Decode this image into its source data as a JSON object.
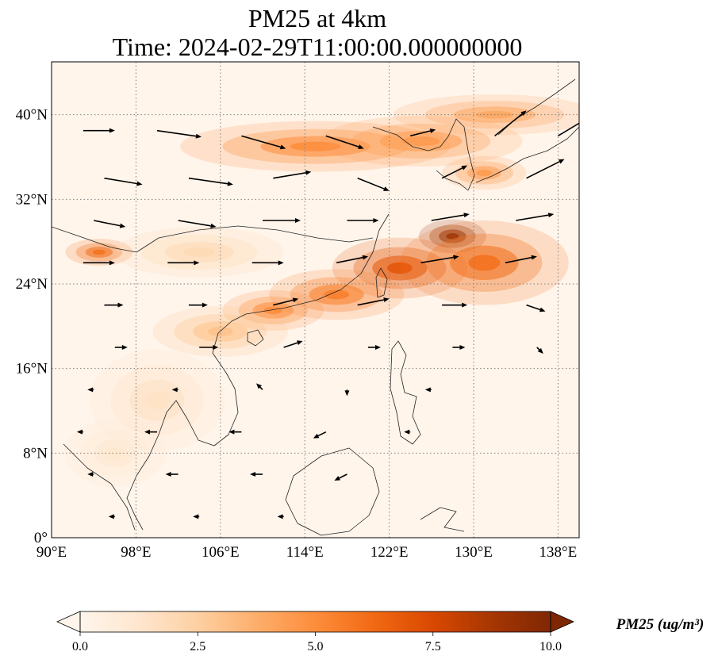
{
  "title": {
    "line1": "PM25 at 4km",
    "line2": "Time: 2024-02-29T11:00:00.000000000"
  },
  "map": {
    "extent": {
      "lon_min": 90,
      "lon_max": 140,
      "lat_min": 0,
      "lat_max": 45
    },
    "gridlines": {
      "visible": true,
      "style": "dotted",
      "color": "#808080"
    },
    "lon_ticks": [
      {
        "value": 90,
        "label": "90°E"
      },
      {
        "value": 98,
        "label": "98°E"
      },
      {
        "value": 106,
        "label": "106°E"
      },
      {
        "value": 114,
        "label": "114°E"
      },
      {
        "value": 122,
        "label": "122°E"
      },
      {
        "value": 130,
        "label": "130°E"
      },
      {
        "value": 138,
        "label": "138°E"
      }
    ],
    "lat_ticks": [
      {
        "value": 0,
        "label": "0°"
      },
      {
        "value": 8,
        "label": "8°N"
      },
      {
        "value": 16,
        "label": "16°N"
      },
      {
        "value": 24,
        "label": "24°N"
      },
      {
        "value": 32,
        "label": "32°N"
      },
      {
        "value": 40,
        "label": "40°N"
      }
    ],
    "plumes": [
      {
        "lon": 115,
        "lat": 37.0,
        "slon": 8.0,
        "slat": 1.5,
        "value": 5.0
      },
      {
        "lon": 125,
        "lat": 37.5,
        "slon": 6.0,
        "slat": 1.5,
        "value": 4.5
      },
      {
        "lon": 132,
        "lat": 40.0,
        "slon": 6.0,
        "slat": 1.2,
        "value": 4.0
      },
      {
        "lon": 131,
        "lat": 34.5,
        "slon": 2.5,
        "slat": 1.0,
        "value": 4.5
      },
      {
        "lon": 128,
        "lat": 28.5,
        "slon": 2.0,
        "slat": 1.0,
        "value": 9.5
      },
      {
        "lon": 123,
        "lat": 25.5,
        "slon": 4.0,
        "slat": 1.8,
        "value": 7.0
      },
      {
        "lon": 131,
        "lat": 26.0,
        "slon": 5.0,
        "slat": 2.5,
        "value": 6.0
      },
      {
        "lon": 117,
        "lat": 23.0,
        "slon": 4.0,
        "slat": 1.5,
        "value": 5.5
      },
      {
        "lon": 111,
        "lat": 21.5,
        "slon": 3.0,
        "slat": 1.2,
        "value": 5.0
      },
      {
        "lon": 106,
        "lat": 19.5,
        "slon": 4.0,
        "slat": 1.5,
        "value": 3.0
      },
      {
        "lon": 94.5,
        "lat": 27.0,
        "slon": 2.0,
        "slat": 0.8,
        "value": 6.0
      },
      {
        "lon": 104,
        "lat": 27.0,
        "slon": 5.0,
        "slat": 1.5,
        "value": 2.0
      },
      {
        "lon": 100,
        "lat": 13.0,
        "slon": 4.0,
        "slat": 3.0,
        "value": 1.5
      },
      {
        "lon": 96,
        "lat": 8.0,
        "slon": 3.0,
        "slat": 2.0,
        "value": 1.2
      }
    ],
    "wind_field": [
      {
        "lon": 93,
        "lat": 38.5,
        "u": 5,
        "v": 0
      },
      {
        "lon": 100,
        "lat": 38.5,
        "u": 7,
        "v": -1
      },
      {
        "lon": 108,
        "lat": 38,
        "u": 7,
        "v": -2
      },
      {
        "lon": 116,
        "lat": 38,
        "u": 6,
        "v": -2
      },
      {
        "lon": 124,
        "lat": 38,
        "u": 4,
        "v": 1
      },
      {
        "lon": 132,
        "lat": 38,
        "u": 5,
        "v": 4
      },
      {
        "lon": 138,
        "lat": 38,
        "u": 5,
        "v": 3
      },
      {
        "lon": 95,
        "lat": 34,
        "u": 6,
        "v": -1
      },
      {
        "lon": 103,
        "lat": 34,
        "u": 7,
        "v": -1
      },
      {
        "lon": 111,
        "lat": 34,
        "u": 6,
        "v": 1
      },
      {
        "lon": 119,
        "lat": 34,
        "u": 5,
        "v": -2
      },
      {
        "lon": 127,
        "lat": 34,
        "u": 4,
        "v": 2
      },
      {
        "lon": 135,
        "lat": 34,
        "u": 6,
        "v": 3
      },
      {
        "lon": 94,
        "lat": 30,
        "u": 5,
        "v": -1
      },
      {
        "lon": 102,
        "lat": 30,
        "u": 6,
        "v": -1
      },
      {
        "lon": 110,
        "lat": 30,
        "u": 6,
        "v": 0
      },
      {
        "lon": 118,
        "lat": 30,
        "u": 5,
        "v": 0
      },
      {
        "lon": 126,
        "lat": 30,
        "u": 6,
        "v": 1
      },
      {
        "lon": 134,
        "lat": 30,
        "u": 6,
        "v": 1
      },
      {
        "lon": 93,
        "lat": 26,
        "u": 5,
        "v": 0
      },
      {
        "lon": 101,
        "lat": 26,
        "u": 5,
        "v": 0
      },
      {
        "lon": 109,
        "lat": 26,
        "u": 5,
        "v": 0
      },
      {
        "lon": 117,
        "lat": 26,
        "u": 5,
        "v": 1
      },
      {
        "lon": 125,
        "lat": 26,
        "u": 6,
        "v": 1
      },
      {
        "lon": 133,
        "lat": 26,
        "u": 5,
        "v": 1
      },
      {
        "lon": 95,
        "lat": 22,
        "u": 3,
        "v": 0
      },
      {
        "lon": 103,
        "lat": 22,
        "u": 3,
        "v": 0
      },
      {
        "lon": 111,
        "lat": 22,
        "u": 4,
        "v": 1
      },
      {
        "lon": 119,
        "lat": 22,
        "u": 5,
        "v": 1
      },
      {
        "lon": 127,
        "lat": 22,
        "u": 4,
        "v": 0
      },
      {
        "lon": 135,
        "lat": 22,
        "u": 3,
        "v": -1
      },
      {
        "lon": 96,
        "lat": 18,
        "u": 2,
        "v": 0
      },
      {
        "lon": 104,
        "lat": 18,
        "u": 3,
        "v": 0
      },
      {
        "lon": 112,
        "lat": 18,
        "u": 3,
        "v": 1
      },
      {
        "lon": 120,
        "lat": 18,
        "u": 2,
        "v": 0
      },
      {
        "lon": 128,
        "lat": 18,
        "u": 2,
        "v": 0
      },
      {
        "lon": 136,
        "lat": 18,
        "u": 1,
        "v": -1
      },
      {
        "lon": 94,
        "lat": 14,
        "u": -1,
        "v": 0
      },
      {
        "lon": 102,
        "lat": 14,
        "u": -1,
        "v": 0
      },
      {
        "lon": 110,
        "lat": 14,
        "u": -1,
        "v": 1
      },
      {
        "lon": 118,
        "lat": 14,
        "u": 0,
        "v": -1
      },
      {
        "lon": 126,
        "lat": 14,
        "u": -1,
        "v": 0
      },
      {
        "lon": 93,
        "lat": 10,
        "u": -1,
        "v": 0
      },
      {
        "lon": 100,
        "lat": 10,
        "u": -2,
        "v": 0
      },
      {
        "lon": 108,
        "lat": 10,
        "u": -2,
        "v": 0
      },
      {
        "lon": 116,
        "lat": 10,
        "u": -2,
        "v": -1
      },
      {
        "lon": 124,
        "lat": 10,
        "u": -1,
        "v": 0
      },
      {
        "lon": 94,
        "lat": 6,
        "u": -1,
        "v": 0
      },
      {
        "lon": 102,
        "lat": 6,
        "u": -2,
        "v": 0
      },
      {
        "lon": 110,
        "lat": 6,
        "u": -2,
        "v": 0
      },
      {
        "lon": 118,
        "lat": 6,
        "u": -2,
        "v": -1
      },
      {
        "lon": 96,
        "lat": 2,
        "u": -1,
        "v": 0
      },
      {
        "lon": 104,
        "lat": 2,
        "u": -1,
        "v": 0
      },
      {
        "lon": 112,
        "lat": 2,
        "u": -1,
        "v": 0
      }
    ]
  },
  "colorbar": {
    "title": "PM25 (ug/m³)",
    "min": 0,
    "max": 10,
    "ticks": [
      "0.0",
      "2.5",
      "5.0",
      "7.5",
      "10.0"
    ],
    "extend": "both",
    "colors": [
      "#fff5eb",
      "#fee6ce",
      "#fdd0a2",
      "#fdae6b",
      "#fd8d3c",
      "#f16913",
      "#d94801",
      "#a63603",
      "#7f2704"
    ]
  }
}
